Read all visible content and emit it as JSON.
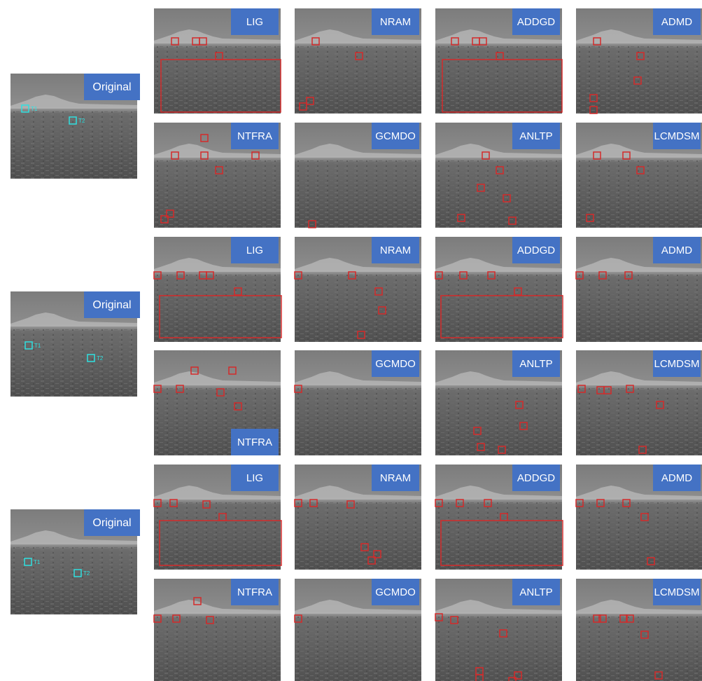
{
  "groups": [
    {
      "original": {
        "label": "Original",
        "targets": [
          "T1",
          "T2"
        ]
      },
      "tiles": [
        [
          "LIG",
          "NRAM",
          "ADDGD",
          "ADMD"
        ],
        [
          "NTFRA",
          "GCMDO",
          "ANLTP",
          "LCMDSM"
        ]
      ]
    },
    {
      "original": {
        "label": "Original",
        "targets": [
          "T1",
          "T2"
        ]
      },
      "tiles": [
        [
          "LIG",
          "NRAM",
          "ADDGD",
          "ADMD"
        ],
        [
          "NTFRA",
          "GCMDO",
          "ANLTP",
          "LCMDSM"
        ]
      ]
    },
    {
      "original": {
        "label": "Original",
        "targets": [
          "T1",
          "T2"
        ]
      },
      "tiles": [
        [
          "LIG",
          "NRAM",
          "ADDGD",
          "ADMD"
        ],
        [
          "NTFRA",
          "GCMDO",
          "ANLTP",
          "LCMDSM"
        ]
      ]
    }
  ]
}
